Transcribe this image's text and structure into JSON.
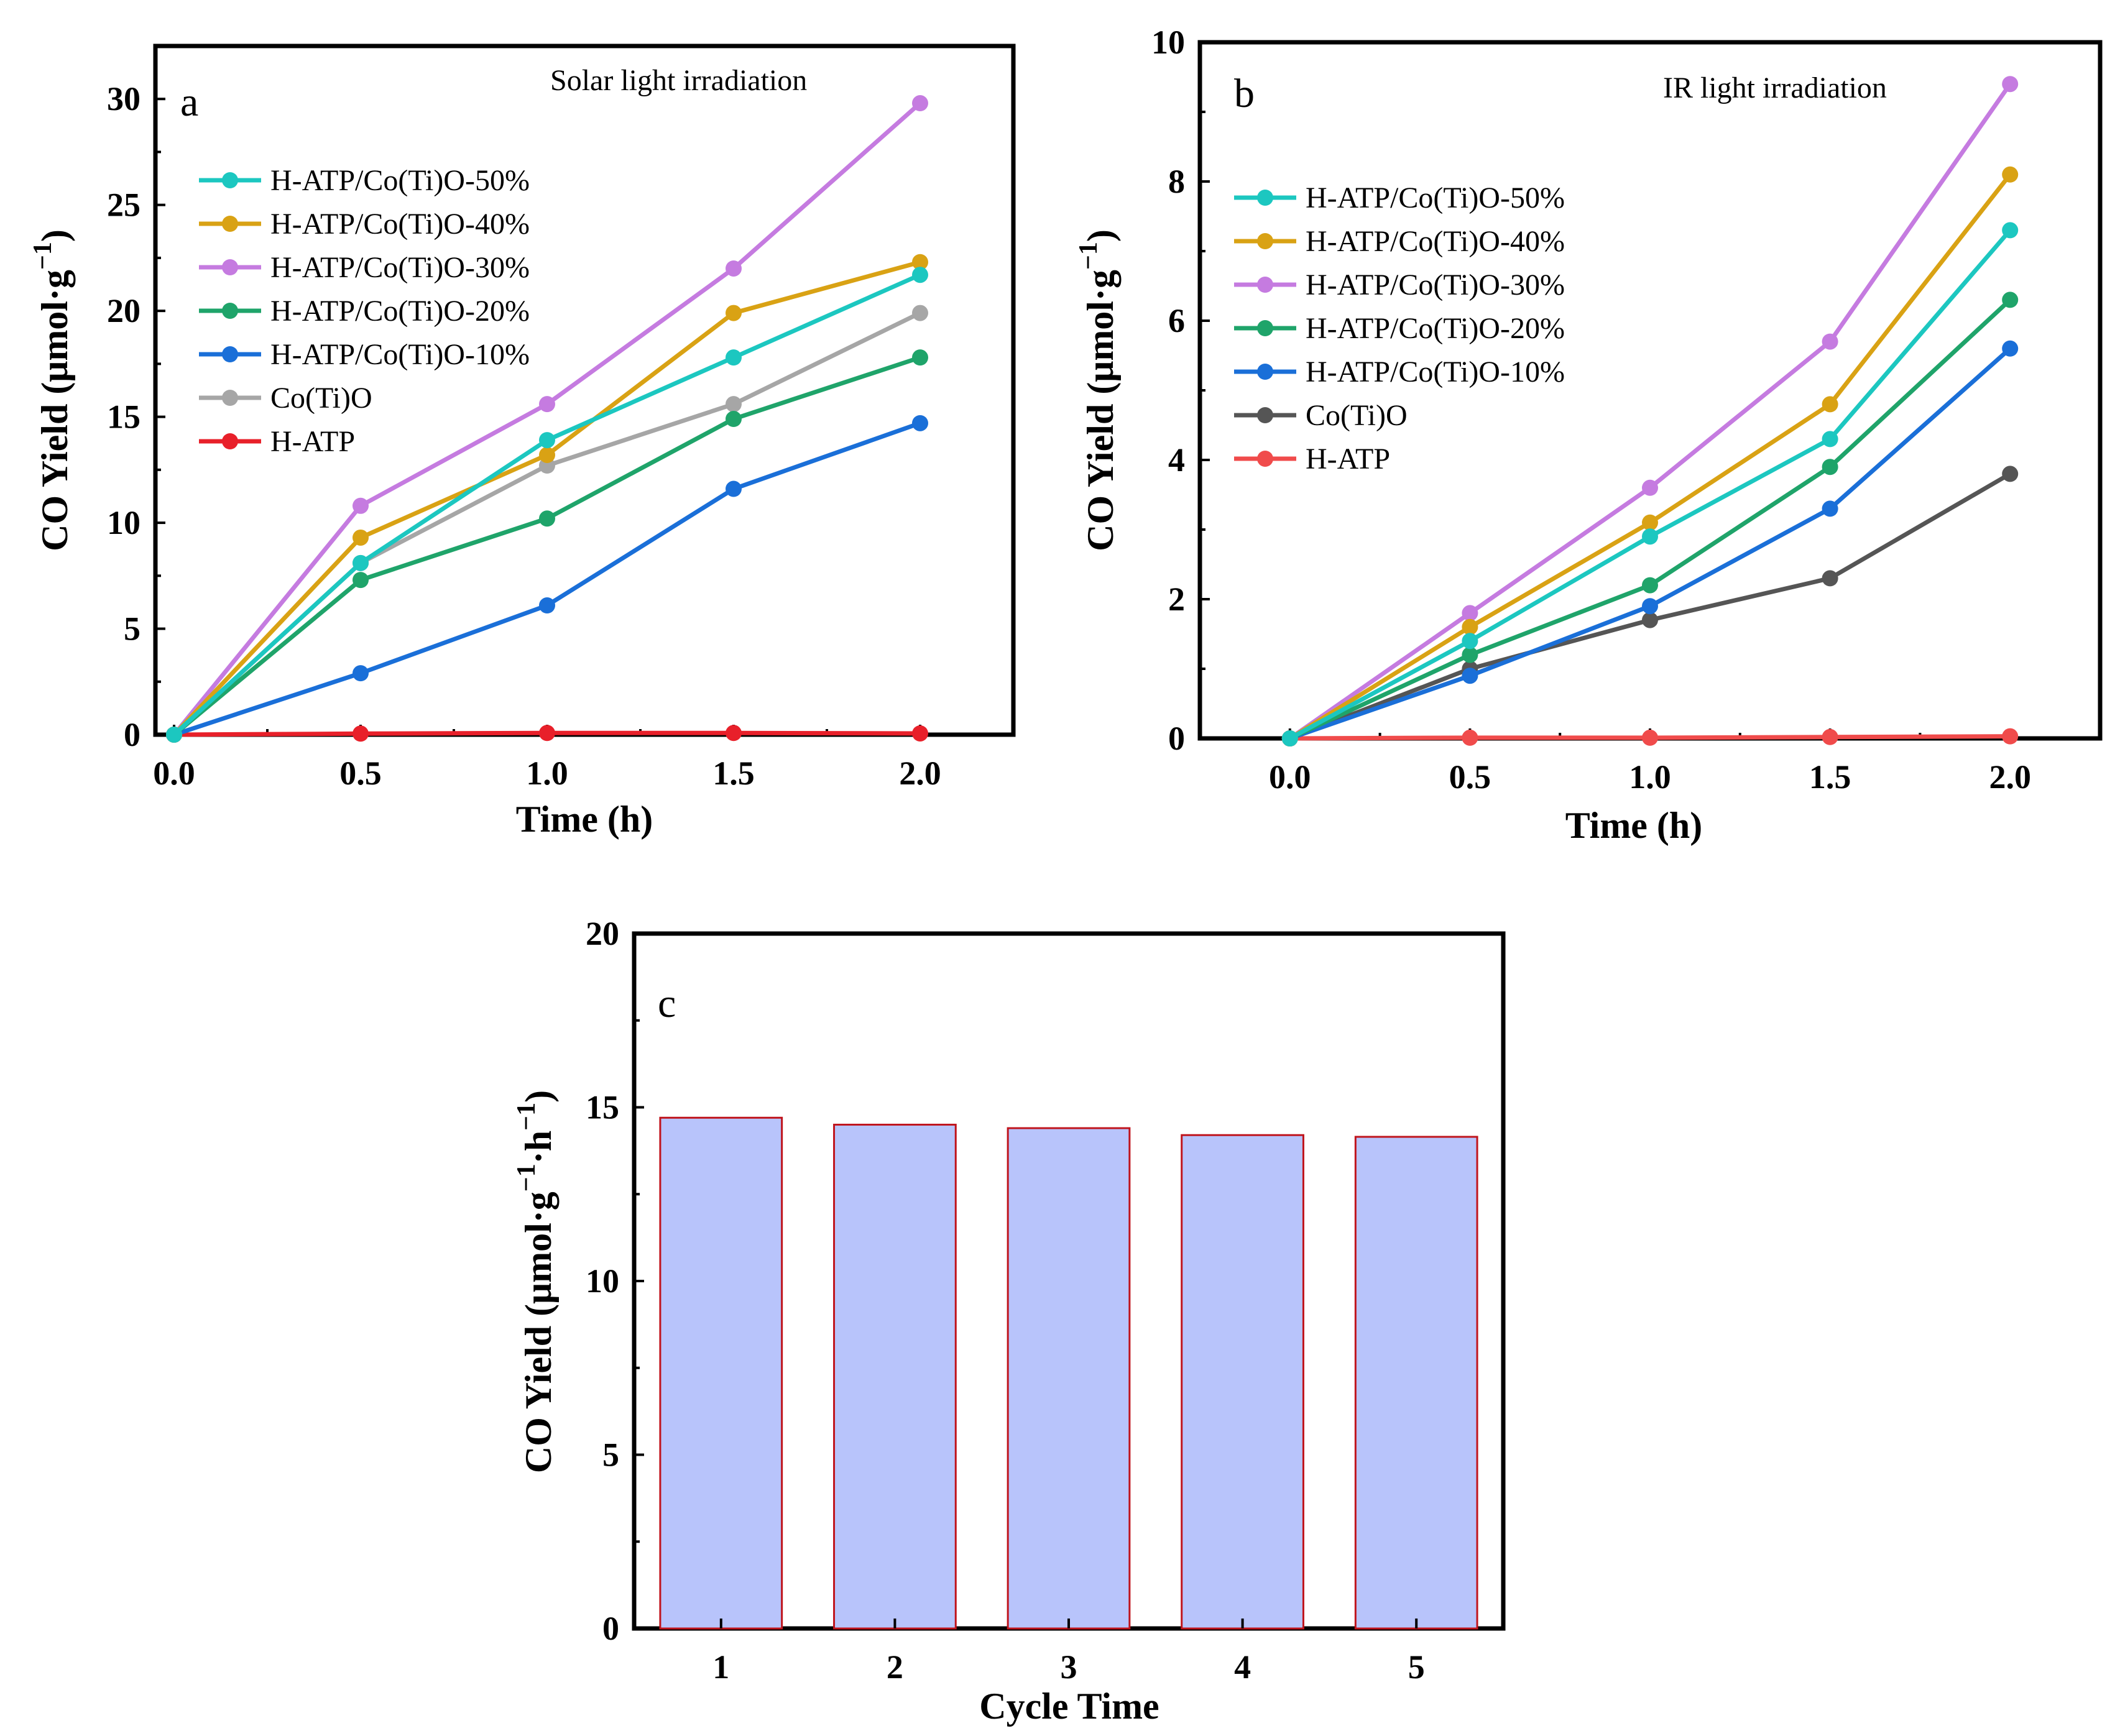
{
  "chart_data": [
    {
      "panel": "a",
      "type": "line",
      "annotation": "Solar light irradiation",
      "xlabel": "Time (h)",
      "ylabel": "CO Yield (μmol·g",
      "ylabel_sup": "−1",
      "ylabel_close": ")",
      "x": [
        0,
        0.5,
        1.0,
        1.5,
        2.0
      ],
      "xticks": [
        "0.0",
        "0.5",
        "1.0",
        "1.5",
        "2.0"
      ],
      "yticks": [
        "0",
        "5",
        "10",
        "15",
        "20",
        "25",
        "30"
      ],
      "xlim": [
        -0.05,
        2.25
      ],
      "ylim": [
        0,
        32.5
      ],
      "legend_position": "upper-left",
      "series": [
        {
          "name": "H-ATP/Co(Ti)O-50%",
          "color": "#1cc7c0",
          "values": [
            0,
            8.1,
            13.9,
            17.8,
            21.7
          ]
        },
        {
          "name": "H-ATP/Co(Ti)O-40%",
          "color": "#d9a214",
          "values": [
            0,
            9.3,
            13.2,
            19.9,
            22.3
          ]
        },
        {
          "name": "H-ATP/Co(Ti)O-30%",
          "color": "#c57be0",
          "values": [
            0,
            10.8,
            15.6,
            22.0,
            29.8
          ]
        },
        {
          "name": "H-ATP/Co(Ti)O-20%",
          "color": "#1fa46a",
          "values": [
            0,
            7.3,
            10.2,
            14.9,
            17.8
          ]
        },
        {
          "name": "H-ATP/Co(Ti)O-10%",
          "color": "#1a6fd8",
          "values": [
            0,
            2.9,
            6.1,
            11.6,
            14.7
          ]
        },
        {
          "name": "Co(Ti)O",
          "color": "#a6a6a6",
          "values": [
            0,
            8.1,
            12.7,
            15.6,
            19.9
          ]
        },
        {
          "name": "H-ATP",
          "color": "#e8202a",
          "values": [
            0,
            0.05,
            0.08,
            0.08,
            0.06
          ]
        }
      ]
    },
    {
      "panel": "b",
      "type": "line",
      "annotation": "IR light irradiation",
      "xlabel": "Time (h)",
      "ylabel": "CO Yield (μmol·g",
      "ylabel_sup": "−1",
      "ylabel_close": ")",
      "x": [
        0,
        0.5,
        1.0,
        1.5,
        2.0
      ],
      "xticks": [
        "0.0",
        "0.5",
        "1.0",
        "1.5",
        "2.0"
      ],
      "yticks": [
        "0",
        "2",
        "4",
        "6",
        "8",
        "10"
      ],
      "xlim": [
        -0.25,
        2.25
      ],
      "ylim": [
        0,
        10
      ],
      "legend_position": "upper-left",
      "series": [
        {
          "name": "H-ATP/Co(Ti)O-50%",
          "color": "#1cc7c0",
          "values": [
            0,
            1.4,
            2.9,
            4.3,
            7.3
          ]
        },
        {
          "name": "H-ATP/Co(Ti)O-40%",
          "color": "#d9a214",
          "values": [
            0,
            1.6,
            3.1,
            4.8,
            8.1
          ]
        },
        {
          "name": "H-ATP/Co(Ti)O-30%",
          "color": "#c57be0",
          "values": [
            0,
            1.8,
            3.6,
            5.7,
            9.4
          ]
        },
        {
          "name": "H-ATP/Co(Ti)O-20%",
          "color": "#1fa46a",
          "values": [
            0,
            1.2,
            2.2,
            3.9,
            6.3
          ]
        },
        {
          "name": "H-ATP/Co(Ti)O-10%",
          "color": "#1a6fd8",
          "values": [
            0,
            0.9,
            1.9,
            3.3,
            5.6
          ]
        },
        {
          "name": "Co(Ti)O",
          "color": "#555555",
          "values": [
            0,
            1.0,
            1.7,
            2.3,
            3.8
          ]
        },
        {
          "name": "H-ATP",
          "color": "#f04b4b",
          "values": [
            0,
            0.01,
            0.01,
            0.02,
            0.03
          ]
        }
      ]
    },
    {
      "panel": "c",
      "type": "bar",
      "xlabel": "Cycle Time",
      "ylabel": "CO Yield (μmol·g",
      "ylabel_sup1": "−1",
      "ylabel_mid": "·h",
      "ylabel_sup2": "−1",
      "ylabel_close": ")",
      "categories": [
        "1",
        "2",
        "3",
        "4",
        "5"
      ],
      "values": [
        14.7,
        14.5,
        14.4,
        14.2,
        14.15
      ],
      "yticks": [
        "0",
        "5",
        "10",
        "15",
        "20"
      ],
      "ylim": [
        0,
        20
      ],
      "bar_fill": "#b8c4fb",
      "bar_edge": "#c0141c"
    }
  ]
}
